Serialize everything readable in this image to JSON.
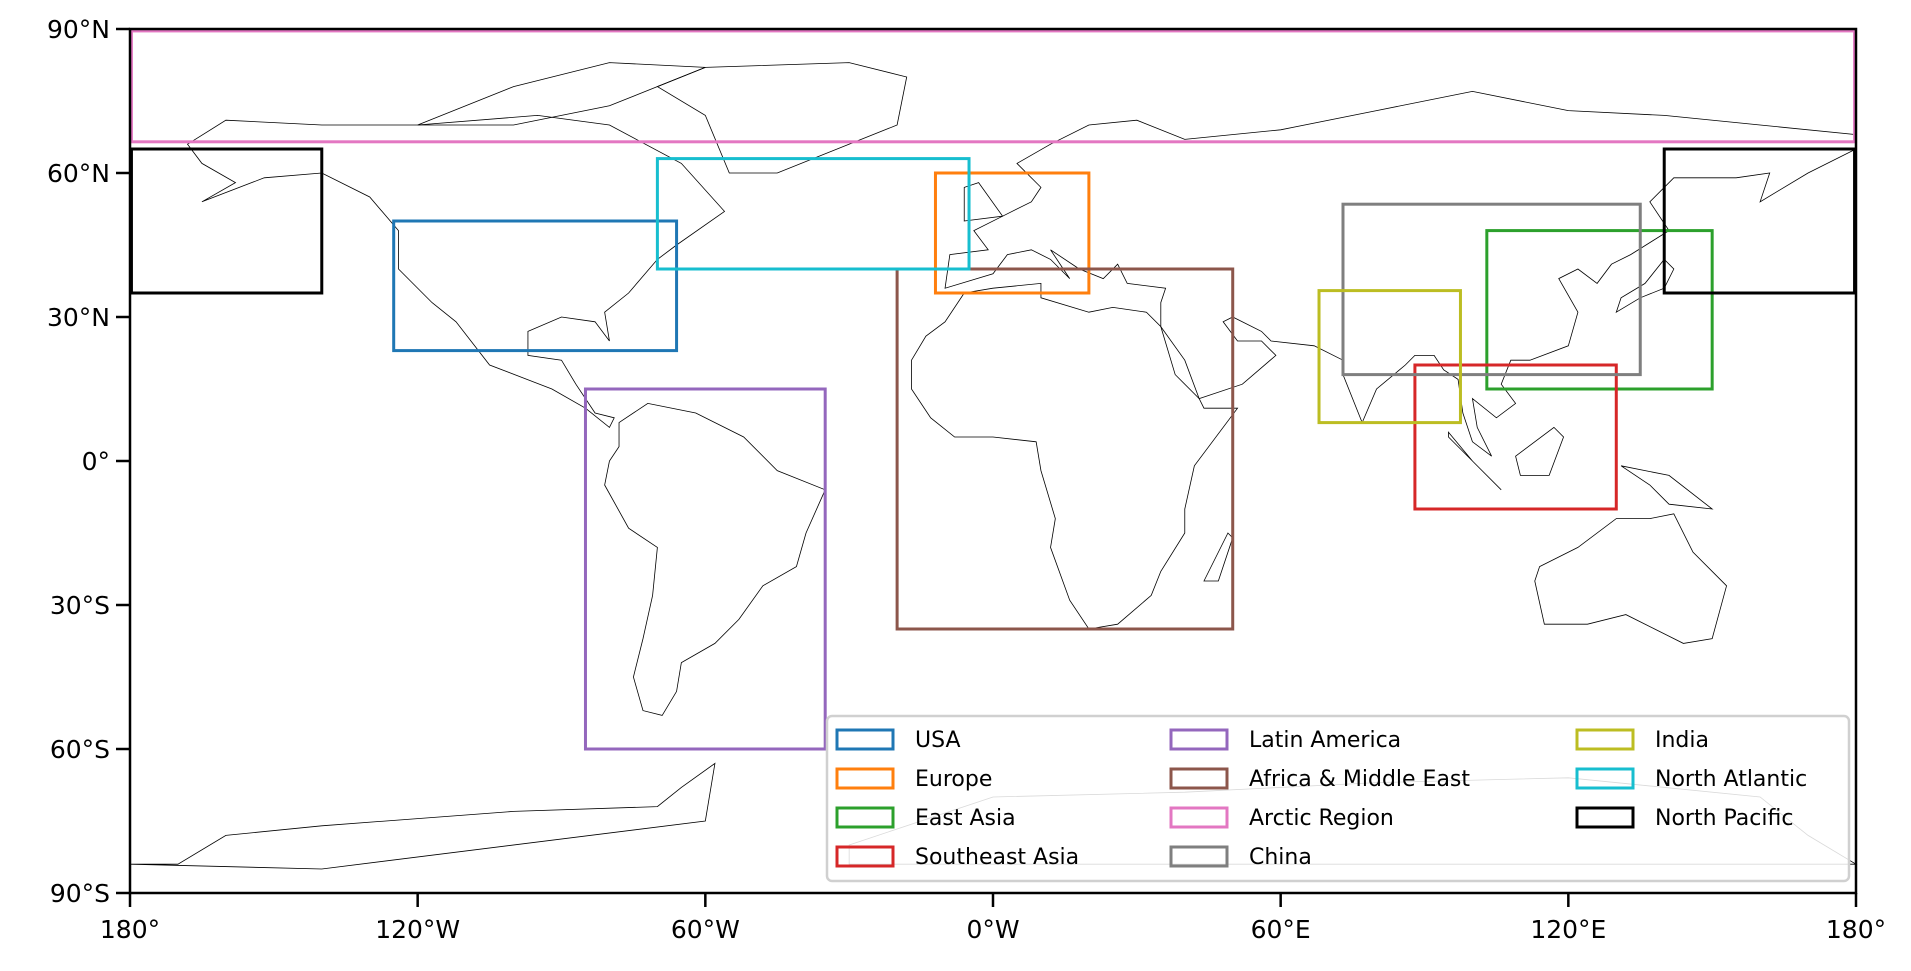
{
  "chart_data": {
    "type": "map",
    "projection": "PlateCarree",
    "xlim": [
      -180,
      180
    ],
    "ylim": [
      -90,
      90
    ],
    "x_ticks": [
      {
        "value": -180,
        "label": "180°"
      },
      {
        "value": -120,
        "label": "120°W"
      },
      {
        "value": -60,
        "label": "60°W"
      },
      {
        "value": 0,
        "label": "0°W"
      },
      {
        "value": 60,
        "label": "60°E"
      },
      {
        "value": 120,
        "label": "120°E"
      },
      {
        "value": 180,
        "label": "180°"
      }
    ],
    "y_ticks": [
      {
        "value": 90,
        "label": "90°N"
      },
      {
        "value": 60,
        "label": "60°N"
      },
      {
        "value": 30,
        "label": "30°N"
      },
      {
        "value": 0,
        "label": "0°"
      },
      {
        "value": -30,
        "label": "30°S"
      },
      {
        "value": -60,
        "label": "60°S"
      },
      {
        "value": -90,
        "label": "90°S"
      }
    ],
    "legend_position": "lower-right",
    "regions": [
      {
        "name": "USA",
        "color": "#1f77b4",
        "boxes": [
          [
            -125,
            -66,
            23,
            50
          ]
        ]
      },
      {
        "name": "Europe",
        "color": "#ff7f0e",
        "boxes": [
          [
            -12,
            20,
            35,
            60
          ]
        ]
      },
      {
        "name": "East Asia",
        "color": "#2ca02c",
        "boxes": [
          [
            103,
            150,
            15,
            48
          ]
        ]
      },
      {
        "name": "Southeast Asia",
        "color": "#d62728",
        "boxes": [
          [
            88,
            130,
            -10,
            20
          ]
        ]
      },
      {
        "name": "Latin America",
        "color": "#9467bd",
        "boxes": [
          [
            -85,
            -35,
            -60,
            15
          ]
        ]
      },
      {
        "name": "Africa & Middle East",
        "color": "#8c564b",
        "boxes": [
          [
            -20,
            50,
            -35,
            40
          ]
        ]
      },
      {
        "name": "Arctic Region",
        "color": "#e377c2",
        "boxes": [
          [
            -180,
            180,
            66.5,
            90
          ]
        ]
      },
      {
        "name": "China",
        "color": "#7f7f7f",
        "boxes": [
          [
            73,
            135,
            18,
            53.5
          ]
        ]
      },
      {
        "name": "India",
        "color": "#bcbd22",
        "boxes": [
          [
            68,
            97.5,
            8,
            35.5
          ]
        ]
      },
      {
        "name": "North Atlantic",
        "color": "#17becf",
        "boxes": [
          [
            -70,
            -5,
            40,
            63
          ]
        ]
      },
      {
        "name": "North Pacific",
        "color": "#000000",
        "boxes": [
          [
            -180,
            -140,
            35,
            65
          ],
          [
            140,
            180,
            35,
            65
          ]
        ]
      }
    ]
  }
}
